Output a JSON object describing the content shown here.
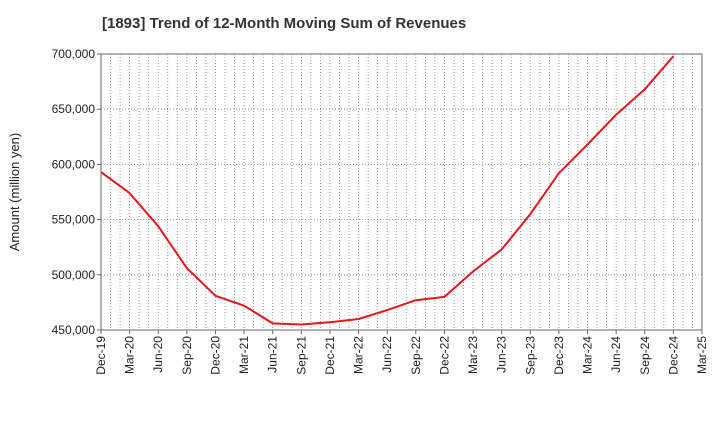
{
  "chart_data": {
    "type": "line",
    "title": "[1893]  Trend of 12-Month Moving Sum of Revenues",
    "xlabel": "",
    "ylabel": "Amount (million yen)",
    "ylim": [
      450000,
      700000
    ],
    "yticks": [
      450000,
      500000,
      550000,
      600000,
      650000,
      700000
    ],
    "ytick_labels": [
      "450,000",
      "500,000",
      "550,000",
      "600,000",
      "650,000",
      "700,000"
    ],
    "xtick_labels": [
      "Dec-19",
      "Mar-20",
      "Jun-20",
      "Sep-20",
      "Dec-20",
      "Mar-21",
      "Jun-21",
      "Sep-21",
      "Dec-21",
      "Mar-22",
      "Jun-22",
      "Sep-22",
      "Dec-22",
      "Mar-23",
      "Jun-23",
      "Sep-23",
      "Dec-23",
      "Mar-24",
      "Jun-24",
      "Sep-24",
      "Dec-24",
      "Mar-25"
    ],
    "x": [
      "Dec-19",
      "Mar-20",
      "Jun-20",
      "Sep-20",
      "Dec-20",
      "Mar-21",
      "Jun-21",
      "Sep-21",
      "Dec-21",
      "Mar-22",
      "Jun-22",
      "Sep-22",
      "Dec-22",
      "Mar-23",
      "Jun-23",
      "Sep-23",
      "Dec-23",
      "Mar-24",
      "Jun-24",
      "Sep-24",
      "Dec-24"
    ],
    "series": [
      {
        "color": "#e8151b",
        "values": [
          593000,
          574000,
          544000,
          506000,
          481000,
          472000,
          456000,
          455000,
          457000,
          460000,
          468000,
          477000,
          480000,
          503000,
          523000,
          555000,
          592000,
          618000,
          645000,
          668000,
          698000
        ]
      }
    ],
    "grid": true,
    "minor_grid": "monthly",
    "legend": "none",
    "background": "#ffffff",
    "grid_color": "#888888"
  }
}
